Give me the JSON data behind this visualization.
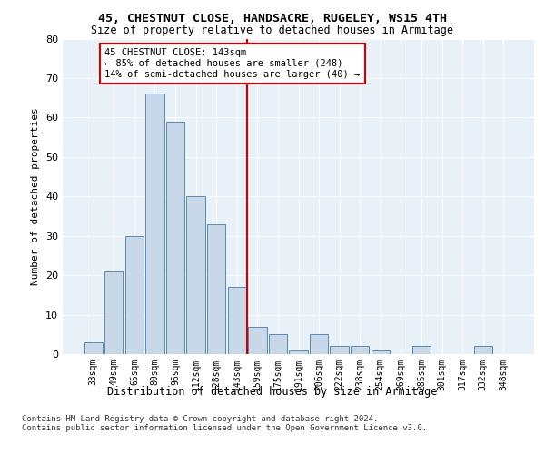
{
  "title_line1": "45, CHESTNUT CLOSE, HANDSACRE, RUGELEY, WS15 4TH",
  "title_line2": "Size of property relative to detached houses in Armitage",
  "xlabel": "Distribution of detached houses by size in Armitage",
  "ylabel": "Number of detached properties",
  "categories": [
    "33sqm",
    "49sqm",
    "65sqm",
    "80sqm",
    "96sqm",
    "112sqm",
    "128sqm",
    "143sqm",
    "159sqm",
    "175sqm",
    "191sqm",
    "206sqm",
    "222sqm",
    "238sqm",
    "254sqm",
    "269sqm",
    "285sqm",
    "301sqm",
    "317sqm",
    "332sqm",
    "348sqm"
  ],
  "values": [
    3,
    21,
    30,
    66,
    59,
    40,
    33,
    17,
    7,
    5,
    1,
    5,
    2,
    2,
    1,
    0,
    2,
    0,
    0,
    2,
    0
  ],
  "bar_color": "#c8d8e8",
  "bar_edge_color": "#5a8ab0",
  "bg_color": "#e8f0f8",
  "marker_color": "#cc0000",
  "marker_label_line1": "45 CHESTNUT CLOSE: 143sqm",
  "marker_label_line2": "← 85% of detached houses are smaller (248)",
  "marker_label_line3": "14% of semi-detached houses are larger (40) →",
  "footer_line1": "Contains HM Land Registry data © Crown copyright and database right 2024.",
  "footer_line2": "Contains public sector information licensed under the Open Government Licence v3.0.",
  "ylim": [
    0,
    80
  ],
  "yticks": [
    0,
    10,
    20,
    30,
    40,
    50,
    60,
    70,
    80
  ]
}
